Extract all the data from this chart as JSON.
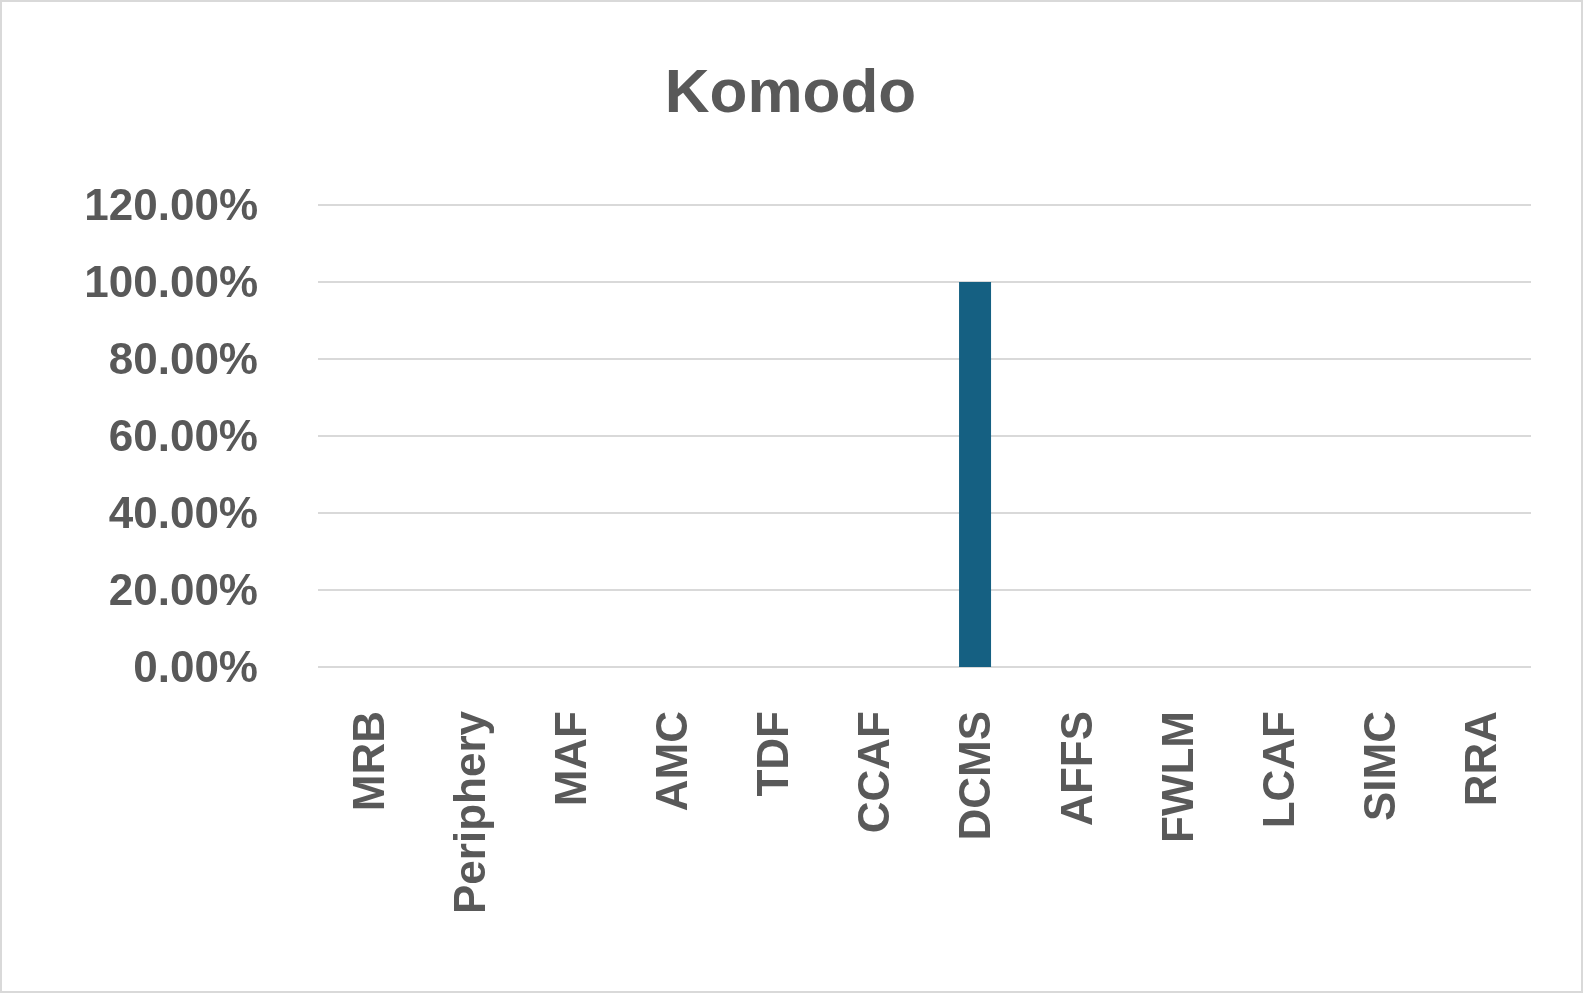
{
  "chart_data": {
    "type": "bar",
    "title": "Komodo",
    "categories": [
      "MRB",
      "Periphery",
      "MAF",
      "AMC",
      "TDF",
      "CCAF",
      "DCMS",
      "AFFS",
      "FWLM",
      "LCAF",
      "SIMC",
      "RRA"
    ],
    "values": [
      0,
      0,
      0,
      0,
      0,
      0,
      100,
      0,
      0,
      0,
      0,
      0
    ],
    "color": "#156082",
    "ylim": [
      0,
      120
    ],
    "yticks": [
      {
        "value": 0,
        "label": "0.00%"
      },
      {
        "value": 20,
        "label": "20.00%"
      },
      {
        "value": 40,
        "label": "40.00%"
      },
      {
        "value": 60,
        "label": "60.00%"
      },
      {
        "value": 80,
        "label": "80.00%"
      },
      {
        "value": 100,
        "label": "100.00%"
      },
      {
        "value": 120,
        "label": "120.00%"
      }
    ],
    "grid": true
  }
}
